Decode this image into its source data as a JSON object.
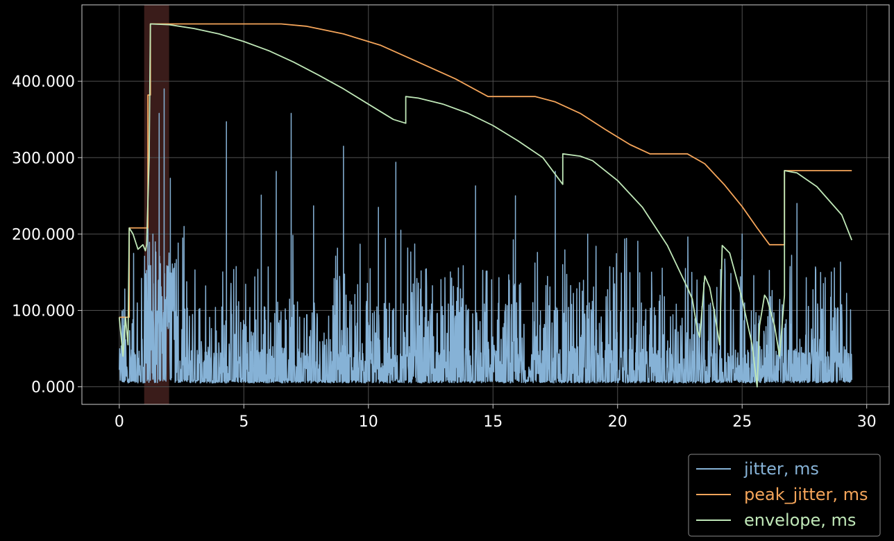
{
  "chart_data": {
    "type": "line",
    "title": "",
    "xlabel": "",
    "ylabel": "",
    "xlim": [
      -1.5,
      30.9
    ],
    "ylim": [
      -23,
      500
    ],
    "grid": true,
    "legend_placement": "bottom-right, below plot",
    "x_ticks": [
      0,
      5,
      10,
      15,
      20,
      25,
      30
    ],
    "x_tick_labels": [
      "0",
      "5",
      "10",
      "15",
      "20",
      "25",
      "30"
    ],
    "y_ticks": [
      0,
      100,
      200,
      300,
      400
    ],
    "y_tick_labels": [
      "0.000",
      "100.000",
      "200.000",
      "300.000",
      "400.000"
    ],
    "highlight_span": {
      "x_start": 1.0,
      "x_end": 2.0,
      "color": "#3a1c1a"
    },
    "colors": {
      "background": "#000000",
      "axes": "#cfcfcf",
      "grid": "#505050"
    },
    "series": [
      {
        "name": "jitter, ms",
        "color": "#86b2d6",
        "x_range": [
          0,
          29.4
        ],
        "baseline_range": [
          5,
          20
        ],
        "noise_max_x": 29.4,
        "spikes": [
          {
            "x": 0.2,
            "y": 80
          },
          {
            "x": 1.15,
            "y": 305
          },
          {
            "x": 1.35,
            "y": 200
          },
          {
            "x": 1.6,
            "y": 358
          },
          {
            "x": 1.8,
            "y": 390
          },
          {
            "x": 2.05,
            "y": 273
          },
          {
            "x": 2.6,
            "y": 210
          },
          {
            "x": 4.3,
            "y": 347
          },
          {
            "x": 5.7,
            "y": 251
          },
          {
            "x": 6.3,
            "y": 282
          },
          {
            "x": 6.9,
            "y": 358
          },
          {
            "x": 7.8,
            "y": 237
          },
          {
            "x": 9.0,
            "y": 315
          },
          {
            "x": 10.4,
            "y": 235
          },
          {
            "x": 11.1,
            "y": 294
          },
          {
            "x": 11.3,
            "y": 205
          },
          {
            "x": 14.3,
            "y": 263
          },
          {
            "x": 15.9,
            "y": 250
          },
          {
            "x": 17.5,
            "y": 282
          },
          {
            "x": 18.8,
            "y": 200
          },
          {
            "x": 25.0,
            "y": 200
          },
          {
            "x": 27.2,
            "y": 240
          }
        ]
      },
      {
        "name": "peak_jitter, ms",
        "color": "#f5a55a",
        "x": [
          0,
          0.4,
          0.4,
          1.15,
          1.15,
          1.25,
          1.25,
          6.5,
          7.5,
          9,
          10.5,
          12,
          13.5,
          14.8,
          14.8,
          16.7,
          17.5,
          18.5,
          19.5,
          20.5,
          21.3,
          21.3,
          22.8,
          23.5,
          24.3,
          25,
          25.6,
          26.1,
          26.1,
          26.7,
          26.7,
          29.4
        ],
        "y": [
          91,
          91,
          208,
          208,
          382,
          382,
          475,
          475,
          472,
          462,
          447,
          425,
          403,
          380,
          380,
          380,
          373,
          358,
          337,
          317,
          305,
          305,
          305,
          292,
          264,
          236,
          208,
          186,
          186,
          186,
          283,
          283
        ]
      },
      {
        "name": "envelope, ms",
        "color": "#c0e8b8",
        "x": [
          0,
          0.15,
          0.25,
          0.35,
          0.4,
          0.55,
          0.75,
          0.95,
          1.05,
          1.1,
          1.2,
          1.25,
          2,
          3,
          4,
          5,
          6,
          7,
          8,
          9,
          10,
          11,
          11.5,
          11.5,
          12,
          13,
          14,
          15,
          16,
          17,
          17.8,
          17.8,
          18.5,
          19,
          20,
          21,
          22,
          22.8,
          23.0,
          23.2,
          23.3,
          23.5,
          23.7,
          23.9,
          24.1,
          24.2,
          24.5,
          25,
          25.4,
          25.6,
          25.7,
          25.9,
          26.0,
          26.3,
          26.5,
          26.7,
          26.7,
          27.2,
          28,
          29,
          29.4
        ],
        "y": [
          91,
          40,
          91,
          55,
          208,
          200,
          180,
          186,
          178,
          186,
          300,
          475,
          474,
          469,
          462,
          452,
          440,
          425,
          408,
          390,
          370,
          350,
          345,
          380,
          378,
          370,
          358,
          342,
          322,
          300,
          265,
          305,
          302,
          296,
          270,
          235,
          185,
          130,
          115,
          75,
          65,
          145,
          130,
          95,
          55,
          185,
          175,
          115,
          55,
          0,
          80,
          120,
          115,
          80,
          40,
          120,
          283,
          280,
          262,
          225,
          192
        ]
      }
    ]
  }
}
